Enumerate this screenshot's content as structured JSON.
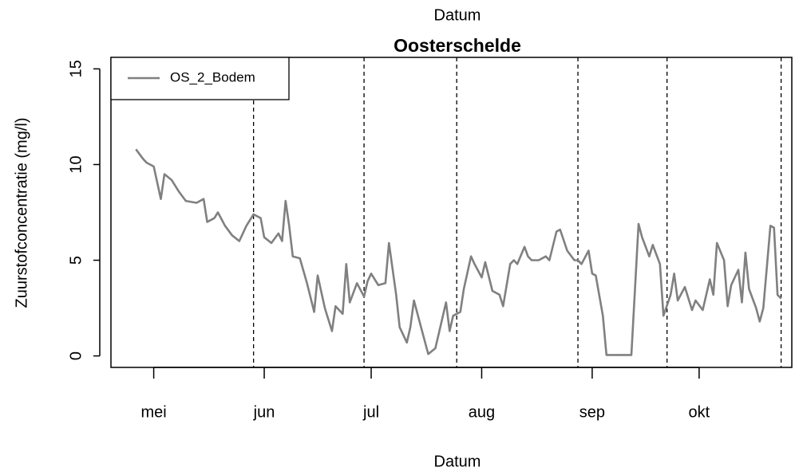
{
  "chart_data": {
    "type": "line",
    "top_label": "Datum",
    "title": "Oosterschelde",
    "x_label": "Datum",
    "y_label": "Zuurstofconcentratie (mg/l)",
    "x": [
      116,
      118,
      119,
      121,
      123,
      124,
      126,
      128,
      130,
      133,
      135,
      136,
      138,
      139,
      141,
      143,
      145,
      147,
      149,
      151,
      152,
      154,
      156,
      157,
      158,
      159,
      160,
      162,
      164,
      166,
      167,
      169,
      171,
      172,
      174,
      175,
      176,
      178,
      180,
      181,
      182,
      184,
      186,
      187,
      189,
      190,
      192,
      193,
      194,
      196,
      198,
      200,
      201,
      203,
      204,
      205,
      207,
      208,
      210,
      211,
      213,
      214,
      216,
      218,
      219,
      221,
      222,
      223,
      225,
      226,
      227,
      229,
      231,
      232,
      234,
      235,
      237,
      239,
      240,
      241,
      243,
      244,
      245,
      247,
      248,
      251,
      254,
      255,
      257,
      258,
      260,
      261,
      263,
      264,
      266,
      267,
      268,
      270,
      272,
      273,
      275,
      277,
      278,
      279,
      281,
      282,
      283,
      285,
      286,
      287,
      288,
      290,
      291,
      292,
      294,
      295,
      296,
      297
    ],
    "series": [
      {
        "name": "OS_2_Bodem",
        "color": "#808080",
        "values": [
          10.8,
          10.3,
          10.1,
          9.9,
          8.2,
          9.5,
          9.2,
          8.6,
          8.1,
          8.0,
          8.2,
          7.0,
          7.2,
          7.5,
          6.8,
          6.3,
          6.0,
          6.8,
          7.4,
          7.2,
          6.2,
          5.9,
          6.4,
          6.0,
          8.1,
          6.8,
          5.2,
          5.1,
          3.8,
          2.3,
          4.2,
          2.5,
          1.3,
          2.6,
          2.2,
          4.8,
          2.8,
          3.8,
          3.1,
          3.9,
          4.3,
          3.7,
          3.8,
          5.9,
          3.2,
          1.5,
          0.7,
          1.5,
          2.9,
          1.5,
          0.1,
          0.4,
          1.2,
          2.8,
          1.3,
          2.1,
          2.3,
          3.5,
          5.2,
          4.8,
          4.1,
          4.9,
          3.4,
          3.2,
          2.6,
          4.8,
          5.0,
          4.8,
          5.7,
          5.2,
          5.0,
          5.0,
          5.2,
          5.0,
          6.5,
          6.6,
          5.5,
          5.0,
          5.0,
          4.8,
          5.5,
          4.3,
          4.2,
          2.1,
          0.05,
          0.05,
          0.05,
          0.05,
          6.9,
          6.2,
          5.2,
          5.8,
          4.8,
          2.1,
          3.2,
          4.3,
          2.9,
          3.6,
          2.4,
          2.9,
          2.4,
          4.0,
          3.2,
          5.9,
          5.0,
          2.6,
          3.7,
          4.5,
          2.8,
          5.4,
          3.5,
          2.5,
          1.8,
          2.5,
          6.8,
          6.7,
          3.2,
          3.0
        ]
      }
    ],
    "xlim": [
      109,
      300
    ],
    "xticks": [
      {
        "value": 121,
        "label": "mei"
      },
      {
        "value": 152,
        "label": "jun"
      },
      {
        "value": 182,
        "label": "jul"
      },
      {
        "value": 213,
        "label": "aug"
      },
      {
        "value": 244,
        "label": "sep"
      },
      {
        "value": 274,
        "label": "okt"
      }
    ],
    "ylim": [
      -0.6,
      15.6
    ],
    "yticks": [
      0,
      5,
      10,
      15
    ],
    "vlines": [
      149,
      180,
      206,
      240,
      265,
      297
    ],
    "legend": "top-left"
  }
}
